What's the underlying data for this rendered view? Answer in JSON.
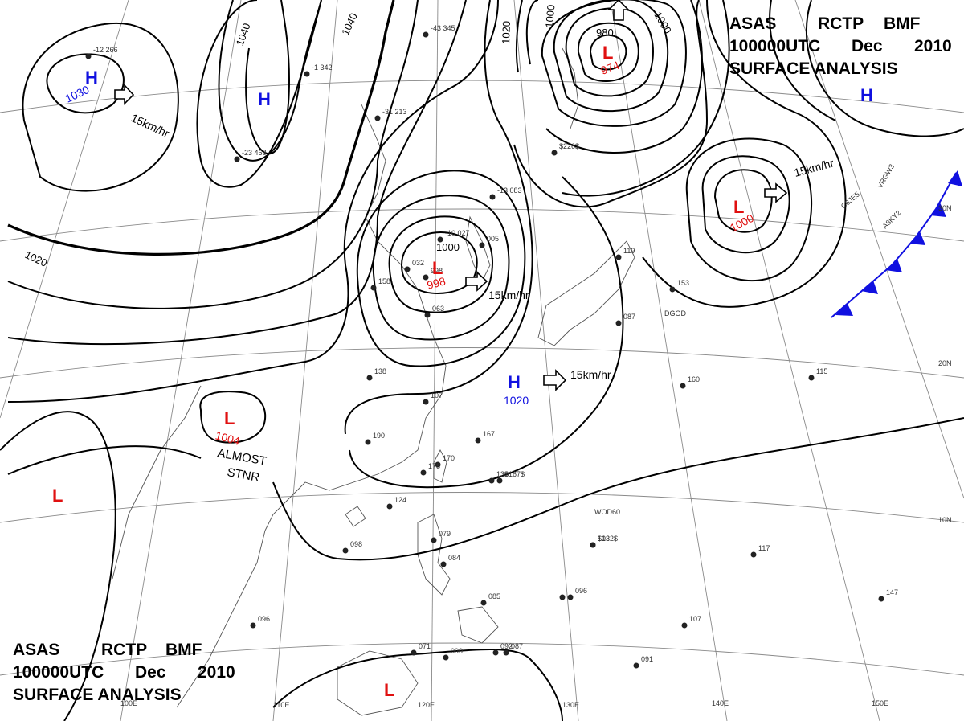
{
  "header_top": {
    "line1": [
      "ASAS",
      "RCTP",
      "BMF"
    ],
    "line2": [
      "100000UTC",
      "Dec",
      "2010"
    ],
    "line3": "SURFACE  ANALYSIS"
  },
  "header_bottom": {
    "line1": [
      "ASAS",
      "RCTP",
      "BMF"
    ],
    "line2": [
      "100000UTC",
      "Dec",
      "2010"
    ],
    "line3": "SURFACE  ANALYSIS"
  },
  "colors": {
    "high": "#1010e0",
    "low": "#e01010",
    "front": "#1010e0",
    "isobar": "#000000",
    "grid": "#7a7a7a"
  },
  "longitude_labels": [
    "100E",
    "110E",
    "120E",
    "130E",
    "140E",
    "150E"
  ],
  "latitude_labels": [
    "30N",
    "20N",
    "10N"
  ],
  "isobar_labels": [
    "1040",
    "1040",
    "1020",
    "1020",
    "1000",
    "1000",
    "980",
    "1000"
  ],
  "pressure_centers": [
    {
      "type": "H",
      "value": "1030"
    },
    {
      "type": "H",
      "value": ""
    },
    {
      "type": "H",
      "value": ""
    },
    {
      "type": "H",
      "value": "1020"
    },
    {
      "type": "L",
      "value": "974"
    },
    {
      "type": "L",
      "value": "1000"
    },
    {
      "type": "L",
      "value": "998"
    },
    {
      "type": "L",
      "value": "1004"
    },
    {
      "type": "L",
      "value": ""
    },
    {
      "type": "L",
      "value": ""
    }
  ],
  "motion_labels": [
    "15km/hr",
    "15km/hr",
    "15km/hr",
    "15km/hr"
  ],
  "stationary_note": {
    "line1": "ALMOST",
    "line2": "STNR"
  },
  "ship_callsigns": [
    "VRGW3",
    "C6JE5",
    "A8KY2",
    "DGOD",
    "WOD60"
  ],
  "station_values": [
    "-12 266",
    "-1 342",
    "-23 468",
    "-31 213",
    "-43 345",
    "-13 083",
    "-10 027",
    "005",
    "998",
    "032",
    "063",
    "158",
    "138",
    "107",
    "167",
    "170",
    "178",
    "190",
    "130",
    "124",
    "098",
    "096",
    "079",
    "084",
    "085",
    "071",
    "090",
    "092",
    "087",
    "103",
    "096",
    "107",
    "091",
    "117",
    "147",
    "115",
    "160",
    "153",
    "119",
    "087",
    "$226$",
    "$167$",
    "$132$"
  ]
}
